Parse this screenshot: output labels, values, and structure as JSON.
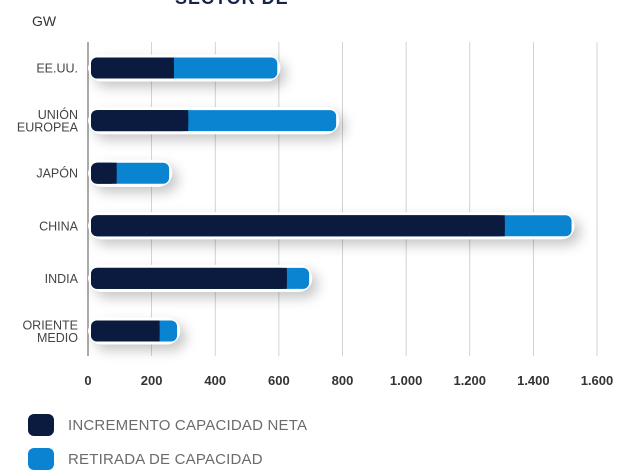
{
  "cropped_title": "SECTOR DE",
  "chart_data": {
    "type": "bar",
    "orientation": "horizontal",
    "stacked": true,
    "ylabel": "GW",
    "categories": [
      [
        "EE.UU."
      ],
      [
        "UNIÓN",
        "EUROPEA"
      ],
      [
        "JAPÓN"
      ],
      [
        "CHINA"
      ],
      [
        "INDIA"
      ],
      [
        "ORIENTE",
        "MEDIO"
      ]
    ],
    "series": [
      {
        "name": "INCREMENTO CAPACIDAD NETA",
        "color": "#0b1b3f",
        "values": [
          270,
          315,
          90,
          1310,
          625,
          225
        ]
      },
      {
        "name": "RETIRADA DE CAPACIDAD",
        "color": "#0a84d0",
        "values": [
          325,
          465,
          165,
          210,
          70,
          55
        ]
      }
    ],
    "xlim": [
      0,
      1600
    ],
    "xticks": [
      "0",
      "200",
      "400",
      "600",
      "800",
      "1.000",
      "1.200",
      "1.400",
      "1.600"
    ],
    "grid": true,
    "legend": "bottom"
  }
}
